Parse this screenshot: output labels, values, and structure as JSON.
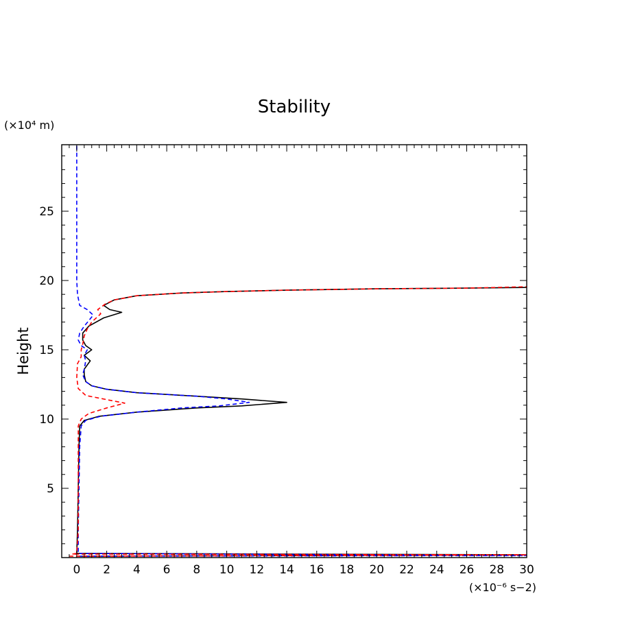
{
  "chart_data": {
    "type": "line",
    "title": "Stability",
    "xlabel": "",
    "ylabel": "Height",
    "x_unit_label": "(×10⁻⁶ s−2)",
    "y_unit_label": "(×10⁴ m)",
    "xlim": [
      -1,
      30
    ],
    "ylim": [
      0,
      29.8
    ],
    "x_ticks": [
      0,
      2,
      4,
      6,
      8,
      10,
      12,
      14,
      16,
      18,
      20,
      22,
      24,
      26,
      28,
      30
    ],
    "x_tick_labels": [
      "0",
      "2",
      "4",
      "6",
      "8",
      "10",
      "12",
      "14",
      "16",
      "18",
      "20",
      "22",
      "24",
      "26",
      "28",
      "30"
    ],
    "y_ticks": [
      5,
      10,
      15,
      20,
      25
    ],
    "y_tick_labels": [
      "5",
      "10",
      "15",
      "20",
      "25"
    ],
    "grid": false,
    "series": [
      {
        "color": "#000000",
        "dash": "solid",
        "points": [
          [
            0.2,
            0.1
          ],
          [
            30,
            0.2
          ],
          [
            0.0,
            0.3
          ],
          [
            0.05,
            2
          ],
          [
            0.1,
            5
          ],
          [
            0.15,
            8
          ],
          [
            0.2,
            9.5
          ],
          [
            0.5,
            9.9
          ],
          [
            1.5,
            10.2
          ],
          [
            4,
            10.5
          ],
          [
            8,
            10.8
          ],
          [
            11,
            10.95
          ],
          [
            14,
            11.2
          ],
          [
            11,
            11.45
          ],
          [
            8,
            11.65
          ],
          [
            4,
            11.9
          ],
          [
            2,
            12.15
          ],
          [
            1,
            12.4
          ],
          [
            0.6,
            12.7
          ],
          [
            0.5,
            13.2
          ],
          [
            0.5,
            13.6
          ],
          [
            0.9,
            14.2
          ],
          [
            0.5,
            14.6
          ],
          [
            1.0,
            15.0
          ],
          [
            0.6,
            15.3
          ],
          [
            0.4,
            15.7
          ],
          [
            0.4,
            16.2
          ],
          [
            0.8,
            16.7
          ],
          [
            1.8,
            17.3
          ],
          [
            3.0,
            17.7
          ],
          [
            2.2,
            17.9
          ],
          [
            1.8,
            18.2
          ],
          [
            2.5,
            18.6
          ],
          [
            4,
            18.9
          ],
          [
            7,
            19.1
          ],
          [
            10,
            19.2
          ],
          [
            14,
            19.3
          ],
          [
            20,
            19.4
          ],
          [
            26,
            19.45
          ],
          [
            30,
            19.5
          ]
        ]
      },
      {
        "color": "#0000ff",
        "dash": "dashed",
        "points": [
          [
            0.1,
            0.1
          ],
          [
            30,
            0.15
          ],
          [
            0.1,
            0.3
          ],
          [
            0.1,
            2
          ],
          [
            0.15,
            5
          ],
          [
            0.2,
            8
          ],
          [
            0.3,
            9.5
          ],
          [
            0.6,
            9.9
          ],
          [
            1.6,
            10.2
          ],
          [
            4,
            10.5
          ],
          [
            7,
            10.8
          ],
          [
            9.5,
            10.95
          ],
          [
            11.5,
            11.2
          ],
          [
            10,
            11.45
          ],
          [
            8,
            11.65
          ],
          [
            4,
            11.9
          ],
          [
            2,
            12.15
          ],
          [
            1,
            12.4
          ],
          [
            0.6,
            12.7
          ],
          [
            0.4,
            13.2
          ],
          [
            0.5,
            13.6
          ],
          [
            0.6,
            14.2
          ],
          [
            0.5,
            14.6
          ],
          [
            0.7,
            15.0
          ],
          [
            0.3,
            15.3
          ],
          [
            0.1,
            15.7
          ],
          [
            0.2,
            16.2
          ],
          [
            0.5,
            16.7
          ],
          [
            0.8,
            17.1
          ],
          [
            1.1,
            17.5
          ],
          [
            0.7,
            17.9
          ],
          [
            0.2,
            18.2
          ],
          [
            0.05,
            19
          ],
          [
            0.0,
            20
          ],
          [
            0.0,
            24
          ],
          [
            0.0,
            29.8
          ]
        ]
      },
      {
        "color": "#ff0000",
        "dash": "dashed",
        "points": [
          [
            -0.5,
            0.1
          ],
          [
            30,
            0.2
          ],
          [
            -0.3,
            0.25
          ],
          [
            0.0,
            0.3
          ],
          [
            0.1,
            2
          ],
          [
            0.1,
            5
          ],
          [
            0.1,
            8
          ],
          [
            0.1,
            9.5
          ],
          [
            0.3,
            10.0
          ],
          [
            0.8,
            10.4
          ],
          [
            2,
            10.8
          ],
          [
            3.2,
            11.15
          ],
          [
            2,
            11.4
          ],
          [
            0.6,
            11.7
          ],
          [
            0.1,
            12.2
          ],
          [
            0.0,
            13.0
          ],
          [
            0.05,
            14.0
          ],
          [
            0.3,
            14.5
          ],
          [
            0.3,
            15.0
          ],
          [
            0.4,
            15.4
          ],
          [
            0.5,
            16.0
          ],
          [
            0.7,
            16.5
          ],
          [
            1.0,
            17.0
          ],
          [
            1.6,
            17.6
          ],
          [
            1.4,
            17.9
          ],
          [
            1.9,
            18.3
          ],
          [
            2.5,
            18.6
          ],
          [
            4,
            18.9
          ],
          [
            7,
            19.1
          ],
          [
            10,
            19.2
          ],
          [
            14,
            19.3
          ],
          [
            20,
            19.4
          ],
          [
            26,
            19.45
          ],
          [
            30,
            19.55
          ]
        ]
      }
    ]
  }
}
